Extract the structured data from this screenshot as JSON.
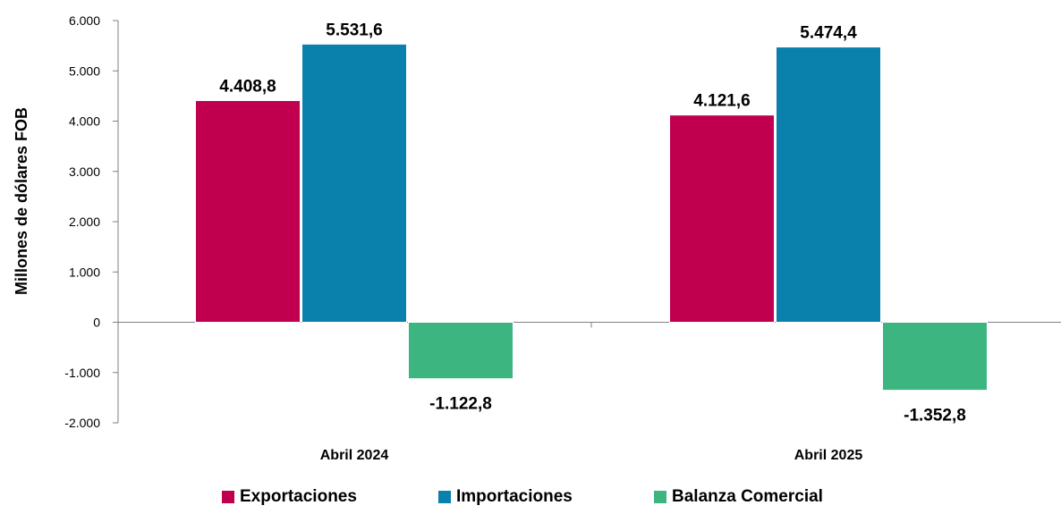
{
  "chart_data": {
    "type": "bar",
    "title": "",
    "xlabel": "",
    "ylabel": "Millones de dólares FOB",
    "categories": [
      "Abril 2024",
      "Abril 2025"
    ],
    "series": [
      {
        "name": "Exportaciones",
        "color": "#c0004f",
        "values": [
          4408.8,
          4121.6
        ],
        "labels": [
          "4.408,8",
          "4.121,6"
        ]
      },
      {
        "name": "Importaciones",
        "color": "#0a80ad",
        "values": [
          5531.6,
          5474.4
        ],
        "labels": [
          "5.531,6",
          "5.474,4"
        ]
      },
      {
        "name": "Balanza Comercial",
        "color": "#3cb580",
        "values": [
          -1122.8,
          -1352.8
        ],
        "labels": [
          "-1.122,8",
          "-1.352,8"
        ]
      }
    ],
    "ylim": [
      -2000,
      6000
    ],
    "yticks": [
      -2000,
      -1000,
      0,
      1000,
      2000,
      3000,
      4000,
      5000,
      6000
    ],
    "ytick_labels": [
      "-2.000",
      "-1.000",
      "0",
      "1.000",
      "2.000",
      "3.000",
      "4.000",
      "5.000",
      "6.000"
    ],
    "grid": false,
    "legend_position": "bottom"
  }
}
